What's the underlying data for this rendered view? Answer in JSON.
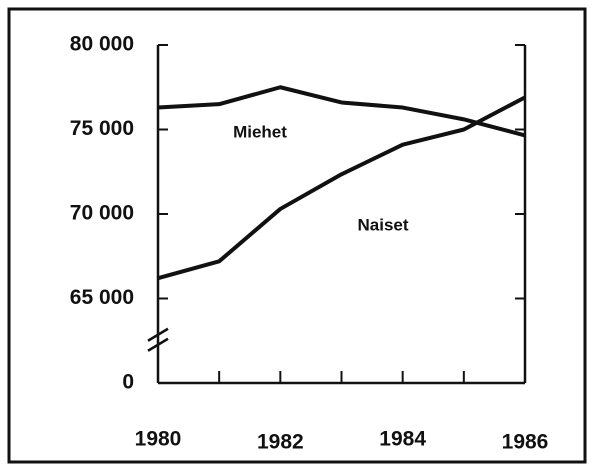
{
  "chart_data": {
    "type": "line",
    "x": [
      1980,
      1981,
      1982,
      1983,
      1984,
      1985,
      1986
    ],
    "xlim": [
      1980,
      1986
    ],
    "xticks": [
      1980,
      1982,
      1984,
      1986
    ],
    "ylim": [
      0,
      80000
    ],
    "y_break": [
      0,
      65000
    ],
    "yticks": [
      {
        "value": 0,
        "label": "0"
      },
      {
        "value": 65000,
        "label": "65 000"
      },
      {
        "value": 70000,
        "label": "70 000"
      },
      {
        "value": 75000,
        "label": "75 000"
      },
      {
        "value": 80000,
        "label": "80 000"
      }
    ],
    "series": [
      {
        "name": "Miehet",
        "color": "#111111",
        "values": [
          76300,
          76500,
          77500,
          76600,
          76300,
          75600,
          74650
        ]
      },
      {
        "name": "Naiset",
        "color": "#111111",
        "values": [
          66200,
          67200,
          70300,
          72350,
          74100,
          75000,
          76900
        ]
      }
    ]
  }
}
